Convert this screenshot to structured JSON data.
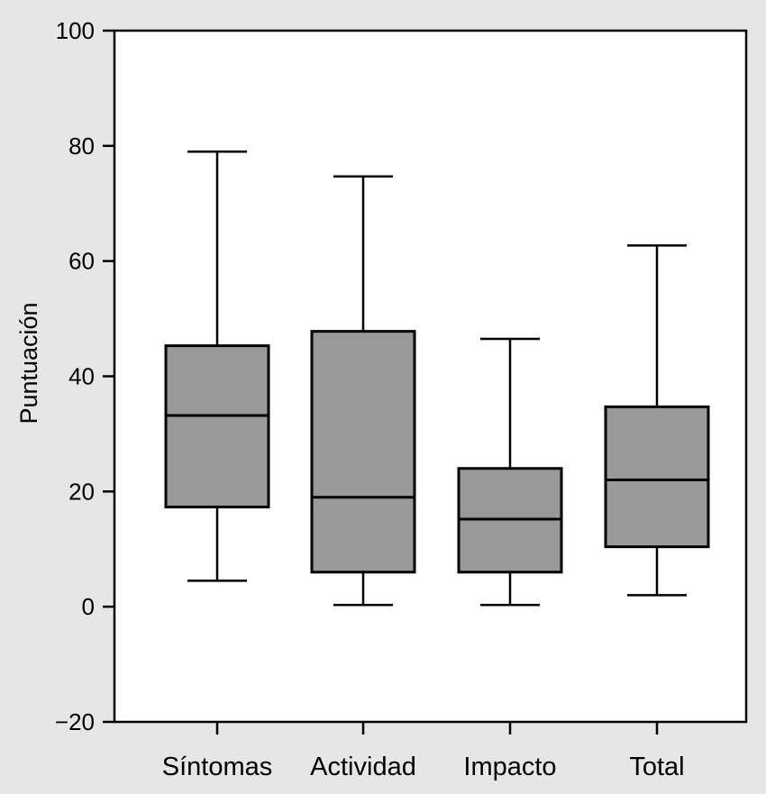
{
  "chart_data": {
    "type": "box",
    "title": "",
    "xlabel": "",
    "ylabel": "Puntuación",
    "ylim": [
      -20,
      100
    ],
    "yticks": [
      {
        "value": 100,
        "label": "100"
      },
      {
        "value": 80,
        "label": "80"
      },
      {
        "value": 60,
        "label": "60"
      },
      {
        "value": 40,
        "label": "40"
      },
      {
        "value": 20,
        "label": "20"
      },
      {
        "value": 0,
        "label": "0"
      },
      {
        "value": -20,
        "label": "−20"
      }
    ],
    "categories": [
      "Síntomas",
      "Actividad",
      "Impacto",
      "Total"
    ],
    "boxes": [
      {
        "category": "Síntomas",
        "min": 4.5,
        "q1": 17.3,
        "median": 33.2,
        "q3": 45.3,
        "max": 79.0
      },
      {
        "category": "Actividad",
        "min": 0.3,
        "q1": 6.0,
        "median": 19.0,
        "q3": 47.8,
        "max": 74.7
      },
      {
        "category": "Impacto",
        "min": 0.3,
        "q1": 6.0,
        "median": 15.2,
        "q3": 24.0,
        "max": 46.5
      },
      {
        "category": "Total",
        "min": 2.0,
        "q1": 10.4,
        "median": 22.0,
        "q3": 34.7,
        "max": 62.7
      }
    ],
    "box_color": "#999999",
    "line_color": "#000000",
    "grid": false
  }
}
